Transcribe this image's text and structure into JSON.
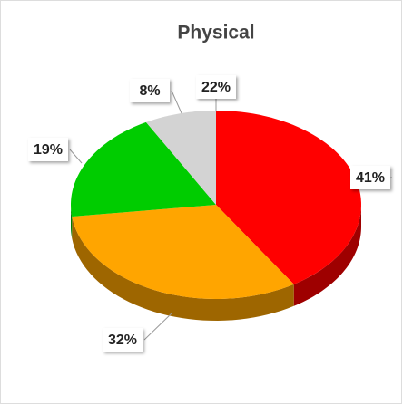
{
  "chart_data": {
    "type": "pie",
    "title": "Physical",
    "values": [
      41,
      32,
      19,
      8
    ],
    "value_labels": [
      "41%",
      "32%",
      "19%",
      "8%"
    ],
    "colors": [
      "#ff0000",
      "#ffa500",
      "#00cc00",
      "#d3d3d3"
    ],
    "annotations": [
      "22%"
    ]
  }
}
